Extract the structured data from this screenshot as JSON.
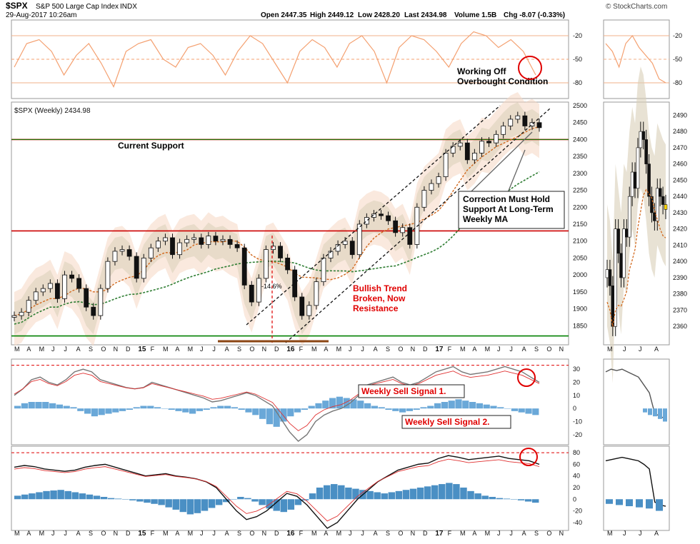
{
  "header": {
    "symbol": "$SPX",
    "name": "S&P 500 Large Cap Index",
    "exchange": "INDX",
    "datetime": "29-Aug-2017 10:26am",
    "open": "Open 2447.35",
    "high": "High 2449.12",
    "low": "Low 2428.20",
    "last": "Last 2434.98",
    "volume": "Volume 1.5B",
    "change": "Chg -8.07 (-0.33%)",
    "watermark": "© StockCharts.com"
  },
  "colors": {
    "price_up": "#111111",
    "rsi_line": "#f4a070",
    "support_line": "#cc0000",
    "long_support": "#008000",
    "ma_short": "#d2691e",
    "ma_long": "#2e7d32",
    "band_fill": "#f6d7c3",
    "histogram": "#6aa8d8",
    "annotation_red": "#e00000",
    "macd_signal": "#e03030"
  },
  "x_axis": {
    "labels": [
      "M",
      "A",
      "M",
      "J",
      "J",
      "A",
      "S",
      "O",
      "N",
      "D",
      "15",
      "F",
      "M",
      "A",
      "M",
      "J",
      "J",
      "A",
      "S",
      "O",
      "N",
      "D",
      "16",
      "F",
      "M",
      "A",
      "M",
      "J",
      "J",
      "A",
      "S",
      "O",
      "N",
      "D",
      "17",
      "F",
      "M",
      "A",
      "M",
      "J",
      "J",
      "A",
      "S",
      "O",
      "N"
    ],
    "inset_labels": [
      "M",
      "J",
      "J",
      "A"
    ]
  },
  "chart_data": [
    {
      "type": "line",
      "panel": "rsi",
      "ylim": [
        -100,
        0
      ],
      "yticks": [
        -20,
        -50,
        -80
      ],
      "x_start": "2014-05",
      "values": [
        -60,
        -30,
        -25,
        -40,
        -70,
        -45,
        -30,
        -55,
        -85,
        -40,
        -30,
        -25,
        -50,
        -60,
        -35,
        -30,
        -45,
        -70,
        -40,
        -20,
        -30,
        -55,
        -80,
        -40,
        -25,
        -35,
        -60,
        -30,
        -20,
        -40,
        -80,
        -35,
        -20,
        -25,
        -40,
        -60,
        -30,
        -15,
        -20,
        -35,
        -25,
        -40,
        -70
      ]
    },
    {
      "type": "line",
      "panel": "price",
      "title": "$SPX (Weekly) 2434.98",
      "ylim": [
        1800,
        2500
      ],
      "yticks": [
        1850,
        1900,
        1950,
        2000,
        2050,
        2100,
        2150,
        2200,
        2250,
        2300,
        2350,
        2400,
        2450,
        2500
      ],
      "x_start": "2014-05",
      "closes": [
        1880,
        1890,
        1925,
        1950,
        1960,
        1975,
        1930,
        2000,
        1990,
        1960,
        1905,
        1880,
        1960,
        2040,
        2070,
        2075,
        2055,
        1990,
        2050,
        2080,
        2100,
        2110,
        2060,
        2095,
        2105,
        2110,
        2090,
        2115,
        2100,
        2105,
        2090,
        2080,
        1970,
        1920,
        1990,
        2075,
        2085,
        2050,
        2015,
        1935,
        1880,
        1910,
        1980,
        2050,
        2070,
        2090,
        2100,
        2060,
        2150,
        2170,
        2180,
        2175,
        2160,
        2125,
        2140,
        2090,
        2200,
        2250,
        2270,
        2290,
        2360,
        2380,
        2390,
        2340,
        2360,
        2395,
        2390,
        2415,
        2440,
        2460,
        2470,
        2440,
        2450,
        2435
      ],
      "support_levels": [
        {
          "value": 2400,
          "label": "Current Support"
        },
        {
          "value": 2130
        },
        {
          "value": 1820
        }
      ],
      "annotations": [
        {
          "text": "Correction Must Hold Support At Long-Term Weekly MA"
        },
        {
          "text": "Bullish Trend Broken, Now Resistance"
        },
        {
          "text": "-14.6%"
        }
      ]
    },
    {
      "type": "bar",
      "panel": "inset_price",
      "ylim": [
        2350,
        2495
      ],
      "yticks": [
        2360,
        2370,
        2380,
        2390,
        2400,
        2410,
        2420,
        2430,
        2440,
        2450,
        2460,
        2470,
        2480,
        2490
      ],
      "closes": [
        2395,
        2385,
        2360,
        2420,
        2405,
        2390,
        2420,
        2415,
        2440,
        2455,
        2445,
        2470,
        2480,
        2475,
        2460,
        2440,
        2430,
        2425,
        2445,
        2440,
        2435,
        2432
      ]
    },
    {
      "type": "bar",
      "panel": "macd_short",
      "ylim": [
        -25,
        35
      ],
      "yticks": [
        30,
        20,
        10,
        0,
        -10,
        -20
      ],
      "values": [
        2,
        4,
        5,
        5,
        5,
        4,
        3,
        2,
        1,
        -2,
        -4,
        -6,
        -5,
        -4,
        -3,
        -2,
        -1,
        1,
        2,
        2,
        1,
        0,
        -1,
        -2,
        -3,
        -4,
        -2,
        -1,
        1,
        2,
        2,
        1,
        -1,
        -3,
        -5,
        -8,
        -12,
        -14,
        -10,
        -6,
        -3,
        -1,
        2,
        4,
        6,
        8,
        9,
        8,
        7,
        6,
        4,
        2,
        1,
        -1,
        -2,
        -3,
        -2,
        -1,
        1,
        2,
        4,
        5,
        6,
        7,
        6,
        5,
        4,
        3,
        2,
        1,
        0,
        -2,
        -3,
        -4,
        -5
      ],
      "line": [
        10,
        15,
        22,
        24,
        20,
        18,
        22,
        28,
        30,
        28,
        22,
        20,
        18,
        16,
        15,
        16,
        20,
        18,
        16,
        14,
        12,
        10,
        8,
        5,
        6,
        8,
        10,
        12,
        10,
        6,
        2,
        -8,
        -18,
        -25,
        -20,
        -10,
        -5,
        -2,
        0,
        4,
        10,
        18,
        20,
        22,
        24,
        20,
        18,
        20,
        24,
        28,
        30,
        32,
        28,
        26,
        27,
        28,
        30,
        32,
        30,
        28,
        24,
        20
      ],
      "annotation": "Weekly Sell Signal 1."
    },
    {
      "type": "bar",
      "panel": "macd_long",
      "ylim": [
        -50,
        85
      ],
      "yticks": [
        80,
        60,
        40,
        20,
        0,
        -20,
        -40
      ],
      "values": [
        6,
        8,
        10,
        12,
        14,
        15,
        16,
        14,
        12,
        10,
        8,
        6,
        4,
        2,
        1,
        0,
        -2,
        -4,
        -6,
        -8,
        -10,
        -14,
        -18,
        -22,
        -26,
        -24,
        -20,
        -15,
        -10,
        -5,
        0,
        4,
        2,
        -4,
        -10,
        -16,
        -20,
        -22,
        -18,
        -10,
        -2,
        10,
        20,
        24,
        26,
        24,
        20,
        18,
        16,
        14,
        12,
        10,
        12,
        14,
        16,
        18,
        20,
        22,
        24,
        26,
        28,
        26,
        20,
        14,
        10,
        6,
        4,
        2,
        1,
        0,
        -2,
        -4,
        -6
      ],
      "line": [
        55,
        58,
        56,
        52,
        50,
        48,
        50,
        55,
        58,
        60,
        55,
        50,
        45,
        40,
        42,
        44,
        40,
        38,
        35,
        30,
        20,
        0,
        -20,
        -35,
        -30,
        -20,
        -5,
        10,
        5,
        -10,
        -30,
        -50,
        -40,
        -20,
        0,
        15,
        30,
        40,
        50,
        55,
        60,
        62,
        70,
        75,
        72,
        68,
        70,
        72,
        74,
        70,
        68,
        66,
        60
      ],
      "annotation": "Weekly Sell Signal 2."
    },
    {
      "type": "line",
      "panel": "inset_rsi",
      "values": [
        -30,
        -40,
        -60,
        -30,
        -20,
        -35,
        -45,
        -55,
        -75,
        -80
      ]
    },
    {
      "type": "line",
      "panel": "inset_macd_short",
      "values": [
        28,
        30,
        29,
        30,
        28,
        26,
        24,
        18,
        12,
        -4,
        -6,
        -8
      ]
    },
    {
      "type": "line",
      "panel": "inset_macd_long",
      "values": [
        66,
        68,
        70,
        72,
        70,
        68,
        66,
        60,
        52,
        -5,
        -10,
        -12
      ]
    }
  ],
  "annotations": {
    "working_off": "Working Off\nOverbought Condition",
    "current_support": "Current Support",
    "correction": "Correction Must Hold\nSupport At Long-Term\nWeekly MA",
    "trend_broken": "Bullish Trend\nBroken, Now\nResistance",
    "drawdown": "-14.6%",
    "sell1": "Weekly Sell Signal 1.",
    "sell2": "Weekly Sell Signal 2."
  }
}
